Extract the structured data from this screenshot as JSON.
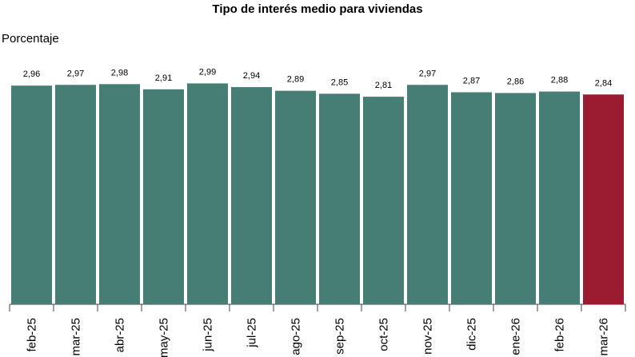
{
  "chart_data": {
    "type": "bar",
    "title": "Tipo de interés medio para viviendas",
    "y_label": "Porcentaje",
    "categories": [
      "feb-25",
      "mar-25",
      "abr-25",
      "may-25",
      "jun-25",
      "jul-25",
      "ago-25",
      "sep-25",
      "oct-25",
      "nov-25",
      "dic-25",
      "ene-26",
      "feb-26",
      "mar-26"
    ],
    "values": [
      2.96,
      2.97,
      2.98,
      2.91,
      2.99,
      2.94,
      2.89,
      2.85,
      2.81,
      2.97,
      2.87,
      2.86,
      2.88,
      2.84
    ],
    "value_labels": [
      "2,96",
      "2,97",
      "2,98",
      "2,91",
      "2,99",
      "2,94",
      "2,89",
      "2,85",
      "2,81",
      "2,97",
      "2,87",
      "2,86",
      "2,88",
      "2,84"
    ],
    "colors": [
      "#467e75",
      "#467e75",
      "#467e75",
      "#467e75",
      "#467e75",
      "#467e75",
      "#467e75",
      "#467e75",
      "#467e75",
      "#467e75",
      "#467e75",
      "#467e75",
      "#467e75",
      "#9b1b30"
    ],
    "ylim": [
      0,
      3.2
    ]
  }
}
